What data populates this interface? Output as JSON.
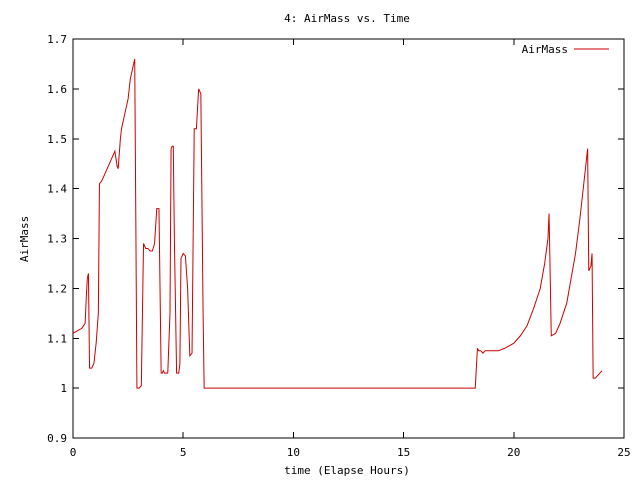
{
  "chart_data": {
    "type": "line",
    "title": "4: AirMass vs. Time",
    "xlabel": "time (Elapse Hours)",
    "ylabel": "AirMass",
    "xlim": [
      0,
      25
    ],
    "ylim": [
      0.9,
      1.7
    ],
    "x_ticks": [
      0,
      5,
      10,
      15,
      20,
      25
    ],
    "y_ticks": [
      0.9,
      1,
      1.1,
      1.2,
      1.3,
      1.4,
      1.5,
      1.6,
      1.7
    ],
    "grid": false,
    "legend_position": "top-right",
    "colors": {
      "series": "#cc0000",
      "axes": "#000000",
      "background": "#ffffff"
    },
    "series": [
      {
        "name": "AirMass",
        "x": [
          0.0,
          0.2,
          0.4,
          0.55,
          0.6,
          0.65,
          0.7,
          0.75,
          0.85,
          0.95,
          1.05,
          1.1,
          1.15,
          1.2,
          1.3,
          1.4,
          1.5,
          1.6,
          1.7,
          1.8,
          1.9,
          2.0,
          2.05,
          2.1,
          2.15,
          2.2,
          2.3,
          2.4,
          2.5,
          2.6,
          2.7,
          2.8,
          2.85,
          2.9,
          2.95,
          3.0,
          3.1,
          3.2,
          3.3,
          3.4,
          3.5,
          3.6,
          3.7,
          3.8,
          3.9,
          4.0,
          4.05,
          4.1,
          4.15,
          4.2,
          4.3,
          4.4,
          4.45,
          4.5,
          4.55,
          4.6,
          4.7,
          4.8,
          4.85,
          4.9,
          5.0,
          5.1,
          5.2,
          5.3,
          5.4,
          5.5,
          5.6,
          5.7,
          5.8,
          5.9,
          5.95,
          6.0,
          6.1,
          6.15,
          6.2,
          7.0,
          8.0,
          9.0,
          10.0,
          11.0,
          12.0,
          13.0,
          14.0,
          15.0,
          16.0,
          17.0,
          18.0,
          18.25,
          18.35,
          18.4,
          18.5,
          18.6,
          18.7,
          18.8,
          19.0,
          19.3,
          19.6,
          20.0,
          20.3,
          20.6,
          20.9,
          21.2,
          21.4,
          21.55,
          21.6,
          21.7,
          21.9,
          22.1,
          22.4,
          22.6,
          22.8,
          23.0,
          23.15,
          23.3,
          23.35,
          23.4,
          23.5,
          23.55,
          23.6,
          23.7,
          23.8,
          24.0
        ],
        "values": [
          1.11,
          1.115,
          1.12,
          1.13,
          1.18,
          1.22,
          1.23,
          1.04,
          1.04,
          1.05,
          1.09,
          1.12,
          1.15,
          1.41,
          1.415,
          1.425,
          1.435,
          1.445,
          1.455,
          1.465,
          1.475,
          1.445,
          1.44,
          1.47,
          1.5,
          1.52,
          1.54,
          1.56,
          1.58,
          1.62,
          1.64,
          1.66,
          1.34,
          1.0,
          1.0,
          1.0,
          1.005,
          1.29,
          1.28,
          1.28,
          1.275,
          1.275,
          1.29,
          1.36,
          1.36,
          1.03,
          1.03,
          1.035,
          1.03,
          1.03,
          1.03,
          1.15,
          1.48,
          1.485,
          1.485,
          1.3,
          1.03,
          1.03,
          1.05,
          1.26,
          1.27,
          1.265,
          1.2,
          1.065,
          1.07,
          1.52,
          1.52,
          1.6,
          1.59,
          1.16,
          1.0,
          1.0,
          1.0,
          1.0,
          1.0,
          1.0,
          1.0,
          1.0,
          1.0,
          1.0,
          1.0,
          1.0,
          1.0,
          1.0,
          1.0,
          1.0,
          1.0,
          1.0,
          1.08,
          1.075,
          1.075,
          1.07,
          1.075,
          1.075,
          1.075,
          1.075,
          1.08,
          1.09,
          1.105,
          1.125,
          1.16,
          1.2,
          1.25,
          1.3,
          1.35,
          1.105,
          1.11,
          1.13,
          1.17,
          1.22,
          1.27,
          1.34,
          1.4,
          1.46,
          1.48,
          1.235,
          1.245,
          1.27,
          1.02,
          1.02,
          1.025,
          1.035
        ]
      }
    ]
  }
}
